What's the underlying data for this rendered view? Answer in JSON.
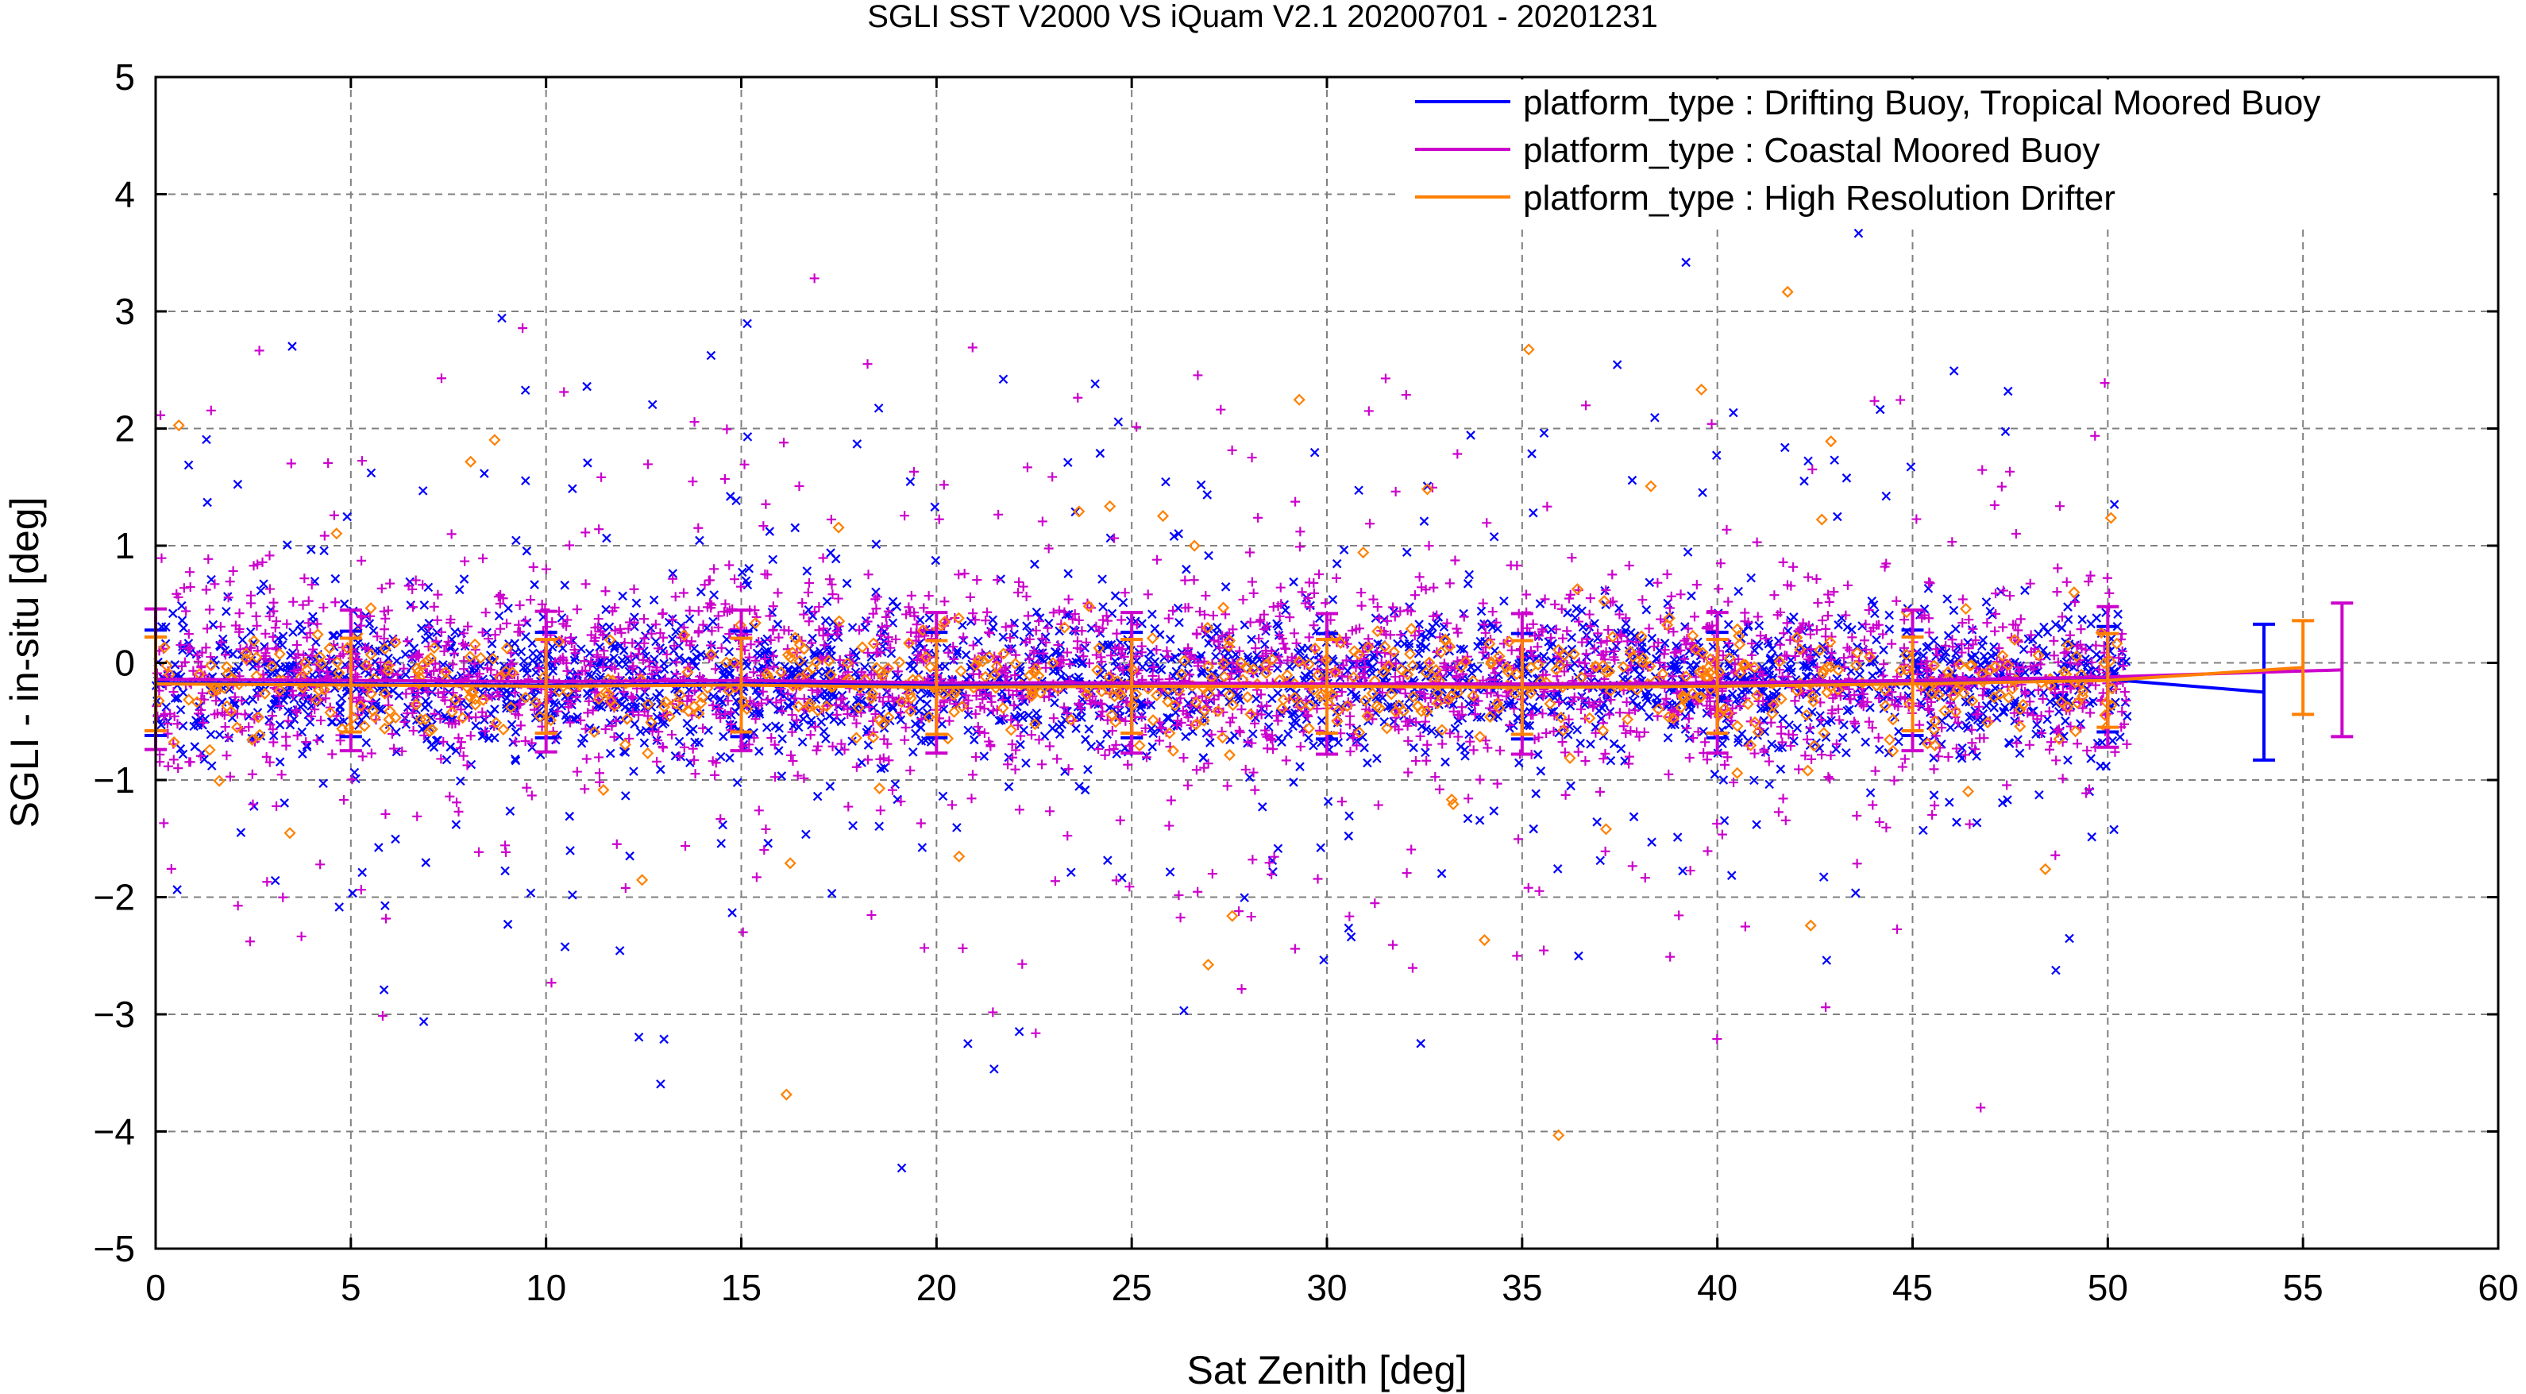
{
  "chart_data": {
    "type": "scatter",
    "title": "SGLI SST V2000 VS iQuam V2.1 20200701 - 20201231",
    "xlabel": "Sat Zenith [deg]",
    "ylabel": "SGLI - in-situ [deg]",
    "xlim": [
      0,
      60
    ],
    "ylim": [
      -5,
      5
    ],
    "x_ticks": [
      0,
      5,
      10,
      15,
      20,
      25,
      30,
      35,
      40,
      45,
      50,
      55,
      60
    ],
    "y_ticks": [
      -5,
      -4,
      -3,
      -2,
      -1,
      0,
      1,
      2,
      3,
      4,
      5
    ],
    "grid": true,
    "legend_position": "top-right",
    "series": [
      {
        "name": "platform_type : Drifting Buoy, Tropical Moored Buoy",
        "color": "#0000ff",
        "marker": "x",
        "x": [
          0,
          5,
          10,
          15,
          20,
          25,
          30,
          35,
          40,
          45,
          50,
          54
        ],
        "mean": [
          -0.17,
          -0.18,
          -0.19,
          -0.18,
          -0.19,
          -0.19,
          -0.2,
          -0.2,
          -0.19,
          -0.17,
          -0.14,
          -0.25
        ],
        "std": [
          0.45,
          0.45,
          0.45,
          0.45,
          0.45,
          0.45,
          0.45,
          0.45,
          0.45,
          0.45,
          0.45,
          0.58
        ],
        "scatter_center": -0.17,
        "scatter_spread": 0.4
      },
      {
        "name": "platform_type : Coastal Moored Buoy",
        "color": "#cc00cc",
        "marker": "+",
        "x": [
          0,
          5,
          10,
          15,
          20,
          25,
          30,
          35,
          40,
          45,
          50,
          56
        ],
        "mean": [
          -0.14,
          -0.15,
          -0.16,
          -0.15,
          -0.17,
          -0.17,
          -0.18,
          -0.18,
          -0.17,
          -0.15,
          -0.12,
          -0.06
        ],
        "std": [
          0.6,
          0.6,
          0.6,
          0.6,
          0.6,
          0.6,
          0.6,
          0.6,
          0.6,
          0.6,
          0.6,
          0.57
        ],
        "scatter_center": -0.1,
        "scatter_spread": 0.55
      },
      {
        "name": "platform_type : High Resolution Drifter",
        "color": "#ff8000",
        "marker": "diamond",
        "x": [
          0,
          5,
          10,
          15,
          20,
          25,
          30,
          35,
          40,
          45,
          50,
          55
        ],
        "mean": [
          -0.18,
          -0.19,
          -0.2,
          -0.19,
          -0.21,
          -0.2,
          -0.2,
          -0.21,
          -0.2,
          -0.18,
          -0.15,
          -0.04
        ],
        "std": [
          0.4,
          0.4,
          0.4,
          0.4,
          0.4,
          0.4,
          0.4,
          0.4,
          0.4,
          0.4,
          0.4,
          0.4
        ],
        "scatter_center": -0.18,
        "scatter_spread": 0.3
      }
    ]
  }
}
